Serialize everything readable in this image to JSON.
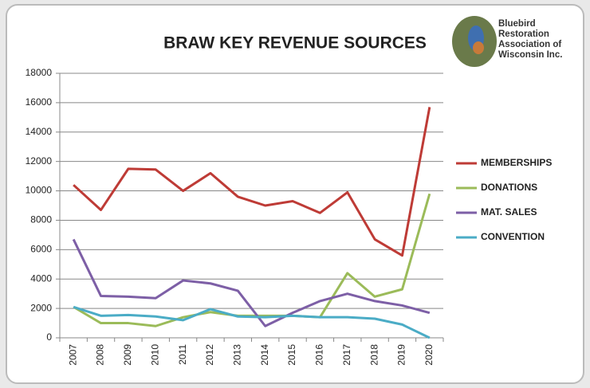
{
  "chart_data": {
    "type": "line",
    "title": "BRAW  KEY  REVENUE  SOURCES",
    "categories": [
      "2007",
      "2008",
      "2009",
      "2010",
      "2011",
      "2012",
      "2013",
      "2014",
      "2015",
      "2016",
      "2017",
      "2018",
      "2019",
      "2020"
    ],
    "series": [
      {
        "name": "MEMBERSHIPS",
        "color": "#be3b36",
        "values": [
          10400,
          8700,
          11500,
          11450,
          10000,
          11200,
          9600,
          9000,
          9300,
          8500,
          9900,
          6700,
          5600,
          15700
        ]
      },
      {
        "name": "DONATIONS",
        "color": "#9bbb59",
        "values": [
          2100,
          1000,
          1000,
          800,
          1400,
          1750,
          1500,
          1500,
          1500,
          1400,
          4400,
          2800,
          3300,
          9800
        ]
      },
      {
        "name": "MAT. SALES",
        "color": "#7d5fa6",
        "values": [
          6700,
          2850,
          2800,
          2700,
          3900,
          3700,
          3200,
          800,
          1700,
          2500,
          3000,
          2500,
          2200,
          1700
        ]
      },
      {
        "name": "CONVENTION",
        "color": "#4bacc6",
        "values": [
          2100,
          1500,
          1550,
          1450,
          1200,
          1950,
          1450,
          1400,
          1500,
          1400,
          1400,
          1300,
          900,
          0
        ]
      }
    ],
    "ylim": [
      0,
      18000
    ],
    "yticks": [
      0,
      2000,
      4000,
      6000,
      8000,
      10000,
      12000,
      14000,
      16000,
      18000
    ],
    "grid": true,
    "legend": "right"
  },
  "logo": {
    "lines": [
      "Bluebird",
      "Restoration",
      "Association of",
      "Wisconsin Inc."
    ]
  }
}
